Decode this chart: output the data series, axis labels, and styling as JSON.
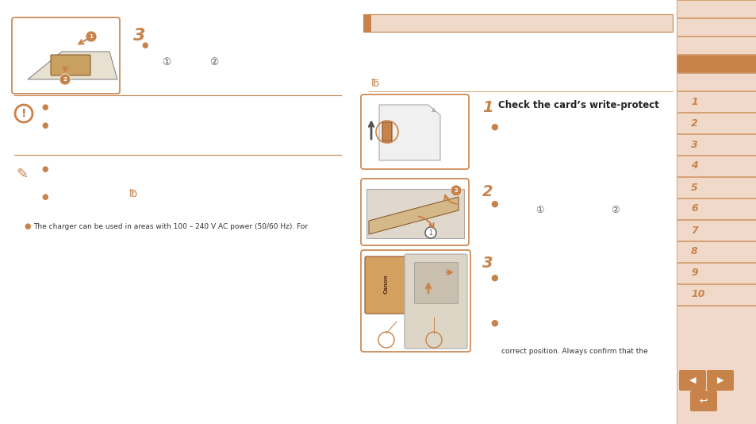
{
  "bg_color": "#ffffff",
  "sidebar_bg": "#f0d9c8",
  "sidebar_active_bg": "#c8834a",
  "brown_color": "#c8834a",
  "text_color": "#333333",
  "charger_note": "The charger can be used in areas with 100 – 240 V AC power (50/60 Hz). For",
  "right_step1_text": "Check the card’s write-protect",
  "correct_pos_text": "correct position. Always confirm that the",
  "sidebar_labels": [
    "",
    "",
    "",
    "",
    "",
    "1",
    "2",
    "3",
    "4",
    "5",
    "6",
    "7",
    "8",
    "9",
    "10",
    ""
  ],
  "sidebar_active_idx": 3
}
